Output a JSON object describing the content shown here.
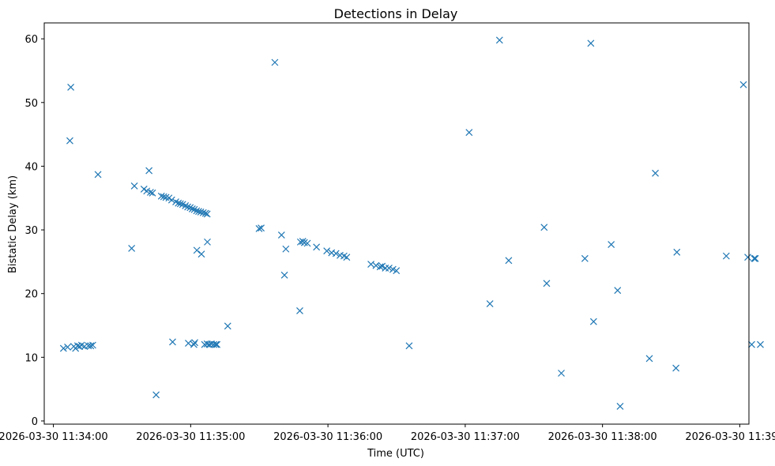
{
  "chart_data": {
    "type": "scatter",
    "title": "Detections in Delay",
    "xlabel": "Time (UTC)",
    "ylabel": "Bistatic Delay (km)",
    "marker": "x",
    "color": "#1f77b4",
    "x_unit": "seconds after 2026-03-30 11:34:00 UTC",
    "xlim": [
      -4,
      304
    ],
    "ylim": [
      -0.5,
      62.5
    ],
    "x_ticks": [
      {
        "value": 0,
        "label": "2026-03-30 11:34:00"
      },
      {
        "value": 60,
        "label": "2026-03-30 11:35:00"
      },
      {
        "value": 120,
        "label": "2026-03-30 11:36:00"
      },
      {
        "value": 180,
        "label": "2026-03-30 11:37:00"
      },
      {
        "value": 240,
        "label": "2026-03-30 11:38:00"
      },
      {
        "value": 300,
        "label": "2026-03-30 11:39:00"
      }
    ],
    "y_ticks": [
      {
        "value": 0,
        "label": "0"
      },
      {
        "value": 10,
        "label": "10"
      },
      {
        "value": 20,
        "label": "20"
      },
      {
        "value": 30,
        "label": "30"
      },
      {
        "value": 40,
        "label": "40"
      },
      {
        "value": 50,
        "label": "50"
      },
      {
        "value": 60,
        "label": "60"
      }
    ],
    "points": [
      [
        4.4,
        11.4
      ],
      [
        6.2,
        11.6
      ],
      [
        7.2,
        44.0
      ],
      [
        7.6,
        52.4
      ],
      [
        8.9,
        11.7
      ],
      [
        9.7,
        11.4
      ],
      [
        10.6,
        11.8
      ],
      [
        11.5,
        11.7
      ],
      [
        12.3,
        11.9
      ],
      [
        13.6,
        11.7
      ],
      [
        15.3,
        11.8
      ],
      [
        16.3,
        11.8
      ],
      [
        17.2,
        11.9
      ],
      [
        19.5,
        38.7
      ],
      [
        34.2,
        27.1
      ],
      [
        35.4,
        36.9
      ],
      [
        39.6,
        36.4
      ],
      [
        40.8,
        36.1
      ],
      [
        41.8,
        39.3
      ],
      [
        42.4,
        35.9
      ],
      [
        43.3,
        35.8
      ],
      [
        44.9,
        4.1
      ],
      [
        47.2,
        35.3
      ],
      [
        48.2,
        35.2
      ],
      [
        49.2,
        35.1
      ],
      [
        50.5,
        35.0
      ],
      [
        51.7,
        34.7
      ],
      [
        53.5,
        34.4
      ],
      [
        54.6,
        34.2
      ],
      [
        55.5,
        34.1
      ],
      [
        56.5,
        34.0
      ],
      [
        57.7,
        33.8
      ],
      [
        58.7,
        33.6
      ],
      [
        59.8,
        33.5
      ],
      [
        60.7,
        33.3
      ],
      [
        61.6,
        33.2
      ],
      [
        62.6,
        33.0
      ],
      [
        63.5,
        32.9
      ],
      [
        64.4,
        32.8
      ],
      [
        65.5,
        32.7
      ],
      [
        66.5,
        32.6
      ],
      [
        67.2,
        32.5
      ],
      [
        52.1,
        12.4
      ],
      [
        59.0,
        12.2
      ],
      [
        61.4,
        12.0
      ],
      [
        61.8,
        12.3
      ],
      [
        62.7,
        26.8
      ],
      [
        64.7,
        26.2
      ],
      [
        66.1,
        12.0
      ],
      [
        67.2,
        12.1
      ],
      [
        67.3,
        28.1
      ],
      [
        68.1,
        12.0
      ],
      [
        69.0,
        12.1
      ],
      [
        70.1,
        12.0
      ],
      [
        71.0,
        12.0
      ],
      [
        71.5,
        12.0
      ],
      [
        76.2,
        14.9
      ],
      [
        89.9,
        30.2
      ],
      [
        90.8,
        30.3
      ],
      [
        96.8,
        56.3
      ],
      [
        99.7,
        29.2
      ],
      [
        101.0,
        22.9
      ],
      [
        101.6,
        27.0
      ],
      [
        107.7,
        17.3
      ],
      [
        108.0,
        28.1
      ],
      [
        109.0,
        28.2
      ],
      [
        109.7,
        28.0
      ],
      [
        111.0,
        27.9
      ],
      [
        115.0,
        27.3
      ],
      [
        119.5,
        26.7
      ],
      [
        121.6,
        26.4
      ],
      [
        123.5,
        26.3
      ],
      [
        125.3,
        26.0
      ],
      [
        127.0,
        25.9
      ],
      [
        128.2,
        25.7
      ],
      [
        138.8,
        24.6
      ],
      [
        141.0,
        24.4
      ],
      [
        142.8,
        24.2
      ],
      [
        143.7,
        24.3
      ],
      [
        145.1,
        24.0
      ],
      [
        146.7,
        24.0
      ],
      [
        148.4,
        23.8
      ],
      [
        149.9,
        23.6
      ],
      [
        155.5,
        11.8
      ],
      [
        181.7,
        45.3
      ],
      [
        190.8,
        18.4
      ],
      [
        195.0,
        59.8
      ],
      [
        199.0,
        25.2
      ],
      [
        214.5,
        30.4
      ],
      [
        215.6,
        21.6
      ],
      [
        222.0,
        7.5
      ],
      [
        232.3,
        25.5
      ],
      [
        234.9,
        59.3
      ],
      [
        236.1,
        15.6
      ],
      [
        243.8,
        27.7
      ],
      [
        246.6,
        20.5
      ],
      [
        247.7,
        2.3
      ],
      [
        260.5,
        9.8
      ],
      [
        263.1,
        38.9
      ],
      [
        272.1,
        8.3
      ],
      [
        272.5,
        26.5
      ],
      [
        294.1,
        25.9
      ],
      [
        301.6,
        52.8
      ],
      [
        303.5,
        25.7
      ],
      [
        305.2,
        12.0
      ],
      [
        306.3,
        25.5
      ],
      [
        306.8,
        25.5
      ],
      [
        309.0,
        12.0
      ]
    ]
  }
}
